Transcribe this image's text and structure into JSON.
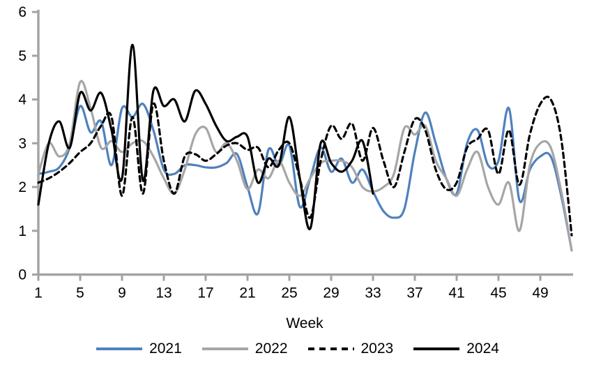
{
  "chart_data": {
    "type": "line",
    "title": "",
    "xlabel": "Week",
    "ylabel": "",
    "ylim": [
      0,
      6
    ],
    "y_ticks": [
      0,
      1,
      2,
      3,
      4,
      5,
      6
    ],
    "x_ticks": [
      1,
      5,
      9,
      13,
      17,
      21,
      25,
      29,
      33,
      37,
      41,
      45,
      49
    ],
    "x_range": [
      1,
      52
    ],
    "grid": false,
    "legend_position": "bottom",
    "axis_color": "#a3a3a3",
    "text_color": "#000000",
    "series": [
      {
        "name": "2021",
        "color": "#4f81bd",
        "style": "solid",
        "start_week": 1,
        "values": [
          2.3,
          2.35,
          2.45,
          2.9,
          3.85,
          3.25,
          3.5,
          2.5,
          3.8,
          3.6,
          3.9,
          3.3,
          2.4,
          2.3,
          2.5,
          2.5,
          2.45,
          2.45,
          2.55,
          2.75,
          2.0,
          1.4,
          2.85,
          2.5,
          2.95,
          1.55,
          2.2,
          2.9,
          2.35,
          2.65,
          2.1,
          2.4,
          1.9,
          1.45,
          1.3,
          1.5,
          2.8,
          3.7,
          3.0,
          2.2,
          1.85,
          3.0,
          3.3,
          2.5,
          2.6,
          3.8,
          1.7,
          2.4,
          2.7,
          2.7,
          1.8,
          0.55
        ]
      },
      {
        "name": "2022",
        "color": "#a6a6a6",
        "style": "solid",
        "start_week": 1,
        "values": [
          2.3,
          3.0,
          2.7,
          3.0,
          4.4,
          3.8,
          2.9,
          3.05,
          2.8,
          3.0,
          3.05,
          2.7,
          2.2,
          1.85,
          2.4,
          3.2,
          3.35,
          2.8,
          3.0,
          2.6,
          1.95,
          2.4,
          2.2,
          2.6,
          2.1,
          1.8,
          2.2,
          2.55,
          2.6,
          2.6,
          2.45,
          2.0,
          1.9,
          2.0,
          2.3,
          3.35,
          3.2,
          3.4,
          2.6,
          2.2,
          1.8,
          2.4,
          2.8,
          2.0,
          1.6,
          2.1,
          1.0,
          2.5,
          3.0,
          2.9,
          1.9,
          0.55
        ]
      },
      {
        "name": "2023",
        "color": "#000000",
        "style": "dashed",
        "start_week": 1,
        "values": [
          2.1,
          2.2,
          2.35,
          2.55,
          2.8,
          3.0,
          3.4,
          3.6,
          1.8,
          3.6,
          1.85,
          3.9,
          2.6,
          1.85,
          2.7,
          2.75,
          2.6,
          2.75,
          2.95,
          3.0,
          2.85,
          2.9,
          2.45,
          2.85,
          3.0,
          2.2,
          1.3,
          2.6,
          3.4,
          3.1,
          3.45,
          2.6,
          3.35,
          2.6,
          2.0,
          2.8,
          3.55,
          3.3,
          2.4,
          1.95,
          2.1,
          2.9,
          3.1,
          3.3,
          2.3,
          3.3,
          2.05,
          3.2,
          3.9,
          4.0,
          3.1,
          0.9
        ]
      },
      {
        "name": "2024",
        "color": "#000000",
        "style": "solid",
        "start_week": 1,
        "values": [
          1.6,
          3.0,
          3.5,
          2.9,
          4.15,
          3.75,
          4.15,
          3.3,
          2.2,
          5.25,
          2.15,
          4.2,
          3.85,
          4.0,
          3.5,
          4.2,
          3.9,
          3.4,
          3.05,
          3.15,
          3.15,
          2.1,
          2.65,
          2.5,
          3.6,
          2.2,
          1.05,
          3.0,
          2.55,
          2.35,
          2.6,
          3.05,
          1.85
        ]
      }
    ]
  }
}
